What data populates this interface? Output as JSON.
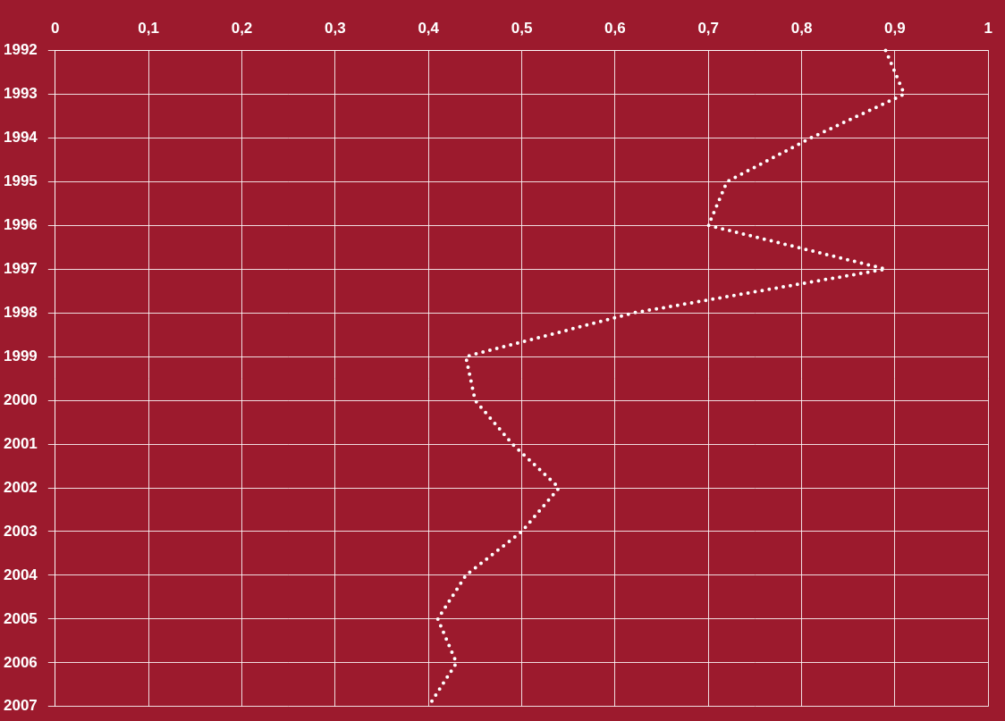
{
  "chart_data": {
    "type": "line",
    "orientation": "horizontal",
    "categories": [
      "1992",
      "1993",
      "1994",
      "1995",
      "1996",
      "1997",
      "1998",
      "1999",
      "2000",
      "2001",
      "2002",
      "2003",
      "2004",
      "2005",
      "2006",
      "2007"
    ],
    "values": [
      0.89,
      0.91,
      0.81,
      0.72,
      0.7,
      0.89,
      0.62,
      0.44,
      0.45,
      0.49,
      0.54,
      0.5,
      0.44,
      0.41,
      0.43,
      0.4
    ],
    "color": "#ffffff",
    "line_style": "dotted",
    "xlim": [
      0,
      1
    ],
    "xticks": [
      0,
      {
        "value": 0.1,
        "label": "0,1"
      },
      {
        "value": 0.2,
        "label": "0,2"
      },
      {
        "value": 0.3,
        "label": "0,3"
      },
      {
        "value": 0.4,
        "label": "0,4"
      },
      {
        "value": 0.5,
        "label": "0,5"
      },
      {
        "value": 0.6,
        "label": "0,6"
      },
      {
        "value": 0.7,
        "label": "0,7"
      },
      {
        "value": 0.8,
        "label": "0,8"
      },
      {
        "value": 0.9,
        "label": "0,9"
      },
      1
    ],
    "grid": true
  }
}
